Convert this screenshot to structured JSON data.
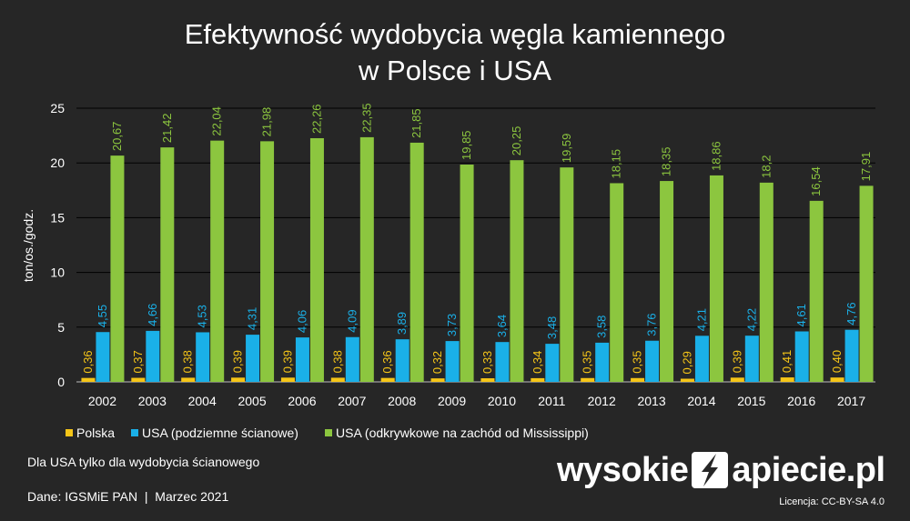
{
  "title_line1": "Efektywność wydobycia węgla kamiennego",
  "title_line2": "w Polsce i USA",
  "note_usa": "Dla USA tylko dla wydobycia ścianowego",
  "source": "Dane: IGSMiE PAN  |  Marzec 2021",
  "logo": {
    "left": "wysokie",
    "right": "apiecie.pl",
    "icon": "lightning-n-logo-icon"
  },
  "license": "Licencja: CC-BY-SA 4.0",
  "chart_data": {
    "type": "bar",
    "ylabel": "ton/os./godz.",
    "ylim": [
      0,
      25
    ],
    "yticks": [
      0,
      5,
      10,
      15,
      20,
      25
    ],
    "grid": true,
    "legend_position": "bottom",
    "categories": [
      "2002",
      "2003",
      "2004",
      "2005",
      "2006",
      "2007",
      "2008",
      "2009",
      "2010",
      "2011",
      "2012",
      "2013",
      "2014",
      "2015",
      "2016",
      "2017"
    ],
    "series": [
      {
        "name": "Polska",
        "color": "#f5c518",
        "values": [
          0.36,
          0.37,
          0.38,
          0.39,
          0.39,
          0.38,
          0.36,
          0.32,
          0.33,
          0.34,
          0.35,
          0.35,
          0.29,
          0.39,
          0.41,
          0.4
        ],
        "labels": [
          "0,36",
          "0,37",
          "0,38",
          "0,39",
          "0,39",
          "0,38",
          "0,36",
          "0,32",
          "0,33",
          "0,34",
          "0,35",
          "0,35",
          "0,29",
          "0,39",
          "0,41",
          "0,40"
        ]
      },
      {
        "name": "USA (podziemne ścianowe)",
        "color": "#1ab0e8",
        "values": [
          4.55,
          4.66,
          4.53,
          4.31,
          4.06,
          4.09,
          3.89,
          3.73,
          3.64,
          3.48,
          3.58,
          3.76,
          4.21,
          4.22,
          4.61,
          4.76
        ],
        "labels": [
          "4,55",
          "4,66",
          "4,53",
          "4,31",
          "4,06",
          "4,09",
          "3,89",
          "3,73",
          "3,64",
          "3,48",
          "3,58",
          "3,76",
          "4,21",
          "4,22",
          "4,61",
          "4,76"
        ]
      },
      {
        "name": "USA (odkrywkowe na zachód od Mississippi)",
        "color": "#8cc63f",
        "values": [
          20.67,
          21.42,
          22.04,
          21.98,
          22.26,
          22.35,
          21.85,
          19.85,
          20.25,
          19.59,
          18.15,
          18.35,
          18.86,
          18.2,
          16.54,
          17.91
        ],
        "labels": [
          "20,67",
          "21,42",
          "22,04",
          "21,98",
          "22,26",
          "22,35",
          "21,85",
          "19,85",
          "20,25",
          "19,59",
          "18,15",
          "18,35",
          "18,86",
          "18,2",
          "16,54",
          "17,91"
        ]
      }
    ]
  }
}
